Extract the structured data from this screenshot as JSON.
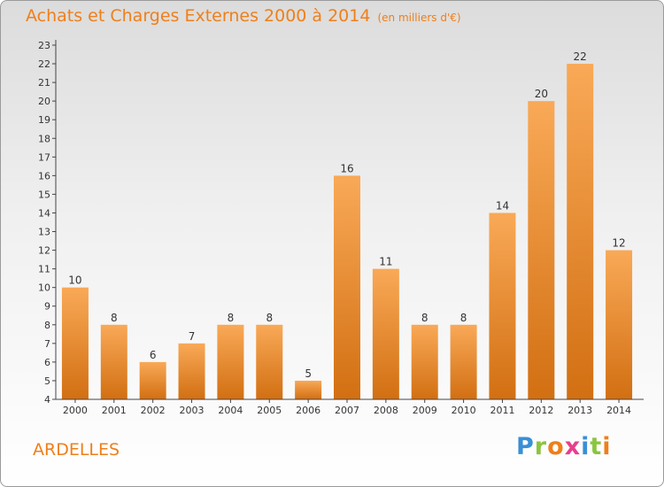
{
  "header": {
    "title": "Achats et Charges Externes 2000 à 2014",
    "subtitle": "(en milliers d'€)"
  },
  "footer": {
    "place": "ARDELLES",
    "logo": {
      "text": "Proxiti",
      "letters": [
        {
          "ch": "P",
          "color": "#3a8fd6"
        },
        {
          "ch": "r",
          "color": "#8bc53f"
        },
        {
          "ch": "o",
          "color": "#ef7f1a"
        },
        {
          "ch": "x",
          "color": "#e83e8c"
        },
        {
          "ch": "i",
          "color": "#3a8fd6"
        },
        {
          "ch": "t",
          "color": "#8bc53f"
        },
        {
          "ch": "i",
          "color": "#ef7f1a"
        }
      ]
    }
  },
  "colors": {
    "accent": "#ef7f1a",
    "bar_light": "#f9a957",
    "bar_dark": "#d26f12",
    "axis": "#444444"
  },
  "chart_data": {
    "type": "bar",
    "title": "Achats et Charges Externes 2000 à 2014",
    "subtitle": "(en milliers d'€)",
    "categories": [
      "2000",
      "2001",
      "2002",
      "2003",
      "2004",
      "2005",
      "2006",
      "2007",
      "2008",
      "2009",
      "2010",
      "2011",
      "2012",
      "2013",
      "2014"
    ],
    "values": [
      10,
      8,
      6,
      7,
      8,
      8,
      5,
      16,
      11,
      8,
      8,
      14,
      20,
      22,
      12
    ],
    "ylim": [
      4,
      23
    ],
    "yticks": [
      4,
      5,
      6,
      7,
      8,
      9,
      10,
      11,
      12,
      13,
      14,
      15,
      16,
      17,
      18,
      19,
      20,
      21,
      22,
      23
    ],
    "grid": false,
    "data_labels": true
  }
}
